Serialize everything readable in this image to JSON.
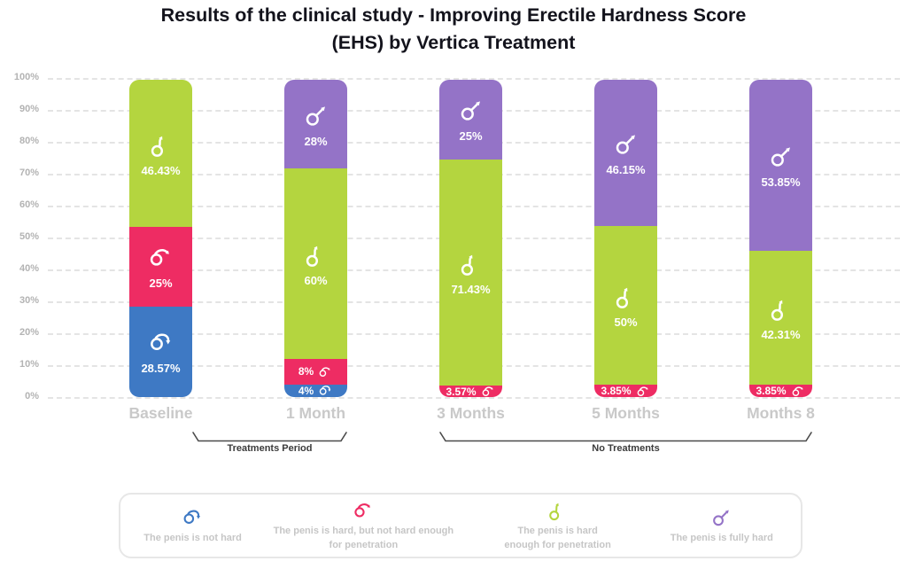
{
  "header": {
    "title_lines": [
      "Results of the clinical study - Improving Erectile Hardness Score",
      "(EHS) by Vertica Treatment"
    ]
  },
  "colors": {
    "not_hard": "#3e79c4",
    "hard_not_enough": "#ee2c63",
    "hard_enough": "#b4d53f",
    "fully_hard": "#9473c7",
    "grid_line": "#e4e4e4",
    "axis_tick_text": "#b3b3b3",
    "category_text": "#c9c9c9",
    "bracket_line": "#4a4a4a",
    "bracket_text": "#3b3b3b",
    "legend_text": "#c6c6c6",
    "title_text": "#13131c",
    "bar_value_text": "#ffffff"
  },
  "chart_data": {
    "type": "bar",
    "stacked": true,
    "title": "Results of the clinical study - Improving Erectile Hardness Score (EHS) by Vertica Treatment",
    "unit": "percent",
    "categories": [
      "Baseline",
      "1 Month",
      "3 Months",
      "5 Months",
      "Months 8"
    ],
    "ylim": [
      0,
      100
    ],
    "y_ticks": [
      "0%",
      "10%",
      "20%",
      "30%",
      "40%",
      "50%",
      "60%",
      "70%",
      "80%",
      "90%",
      "100%"
    ],
    "grid": "dashed-horizontal",
    "legend_position": "bottom",
    "series": [
      {
        "name": "The penis is not hard",
        "state": "not_hard",
        "values": [
          28.57,
          4,
          0,
          0,
          0
        ],
        "labels": [
          "28.57%",
          "4%",
          "",
          "",
          ""
        ]
      },
      {
        "name": "The penis is hard, but not hard enough for penetration",
        "state": "hard_not_enough",
        "values": [
          25,
          8,
          3.57,
          3.85,
          3.85
        ],
        "labels": [
          "25%",
          "8%",
          "3.57%",
          "3.85%",
          "3.85%"
        ]
      },
      {
        "name": "The penis is hard enough for penetration",
        "state": "hard_enough",
        "values": [
          46.43,
          60,
          71.43,
          50,
          42.31
        ],
        "labels": [
          "46.43%",
          "60%",
          "71.43%",
          "50%",
          "42.31%"
        ]
      },
      {
        "name": "The penis is fully hard",
        "state": "fully_hard",
        "values": [
          0,
          28,
          25,
          46.15,
          53.85
        ],
        "labels": [
          "",
          "28%",
          "25%",
          "46.15%",
          "53.85%"
        ]
      }
    ]
  },
  "axis_groups": [
    {
      "label": "Treatments Period",
      "start_category": "Baseline",
      "end_category": "1 Month"
    },
    {
      "label": "No Treatments",
      "start_category": "3 Months",
      "end_category": "Months 8"
    }
  ],
  "legend": {
    "items": [
      {
        "state": "not_hard",
        "icon": "penis-not-hard-icon",
        "label": "The penis is not hard",
        "lines": [
          "The penis is not hard"
        ]
      },
      {
        "state": "hard_not_enough",
        "icon": "penis-hard-not-enough-icon",
        "label": "The penis is hard, but not hard enough for penetration",
        "lines": [
          "The penis is hard, but not hard enough",
          "for penetration"
        ]
      },
      {
        "state": "hard_enough",
        "icon": "penis-hard-enough-icon",
        "label": "The penis is hard enough for penetration",
        "lines": [
          "The penis is hard",
          "enough for penetration"
        ]
      },
      {
        "state": "fully_hard",
        "icon": "penis-fully-hard-icon",
        "label": "The penis is fully hard",
        "lines": [
          "The penis is fully hard"
        ]
      }
    ]
  }
}
